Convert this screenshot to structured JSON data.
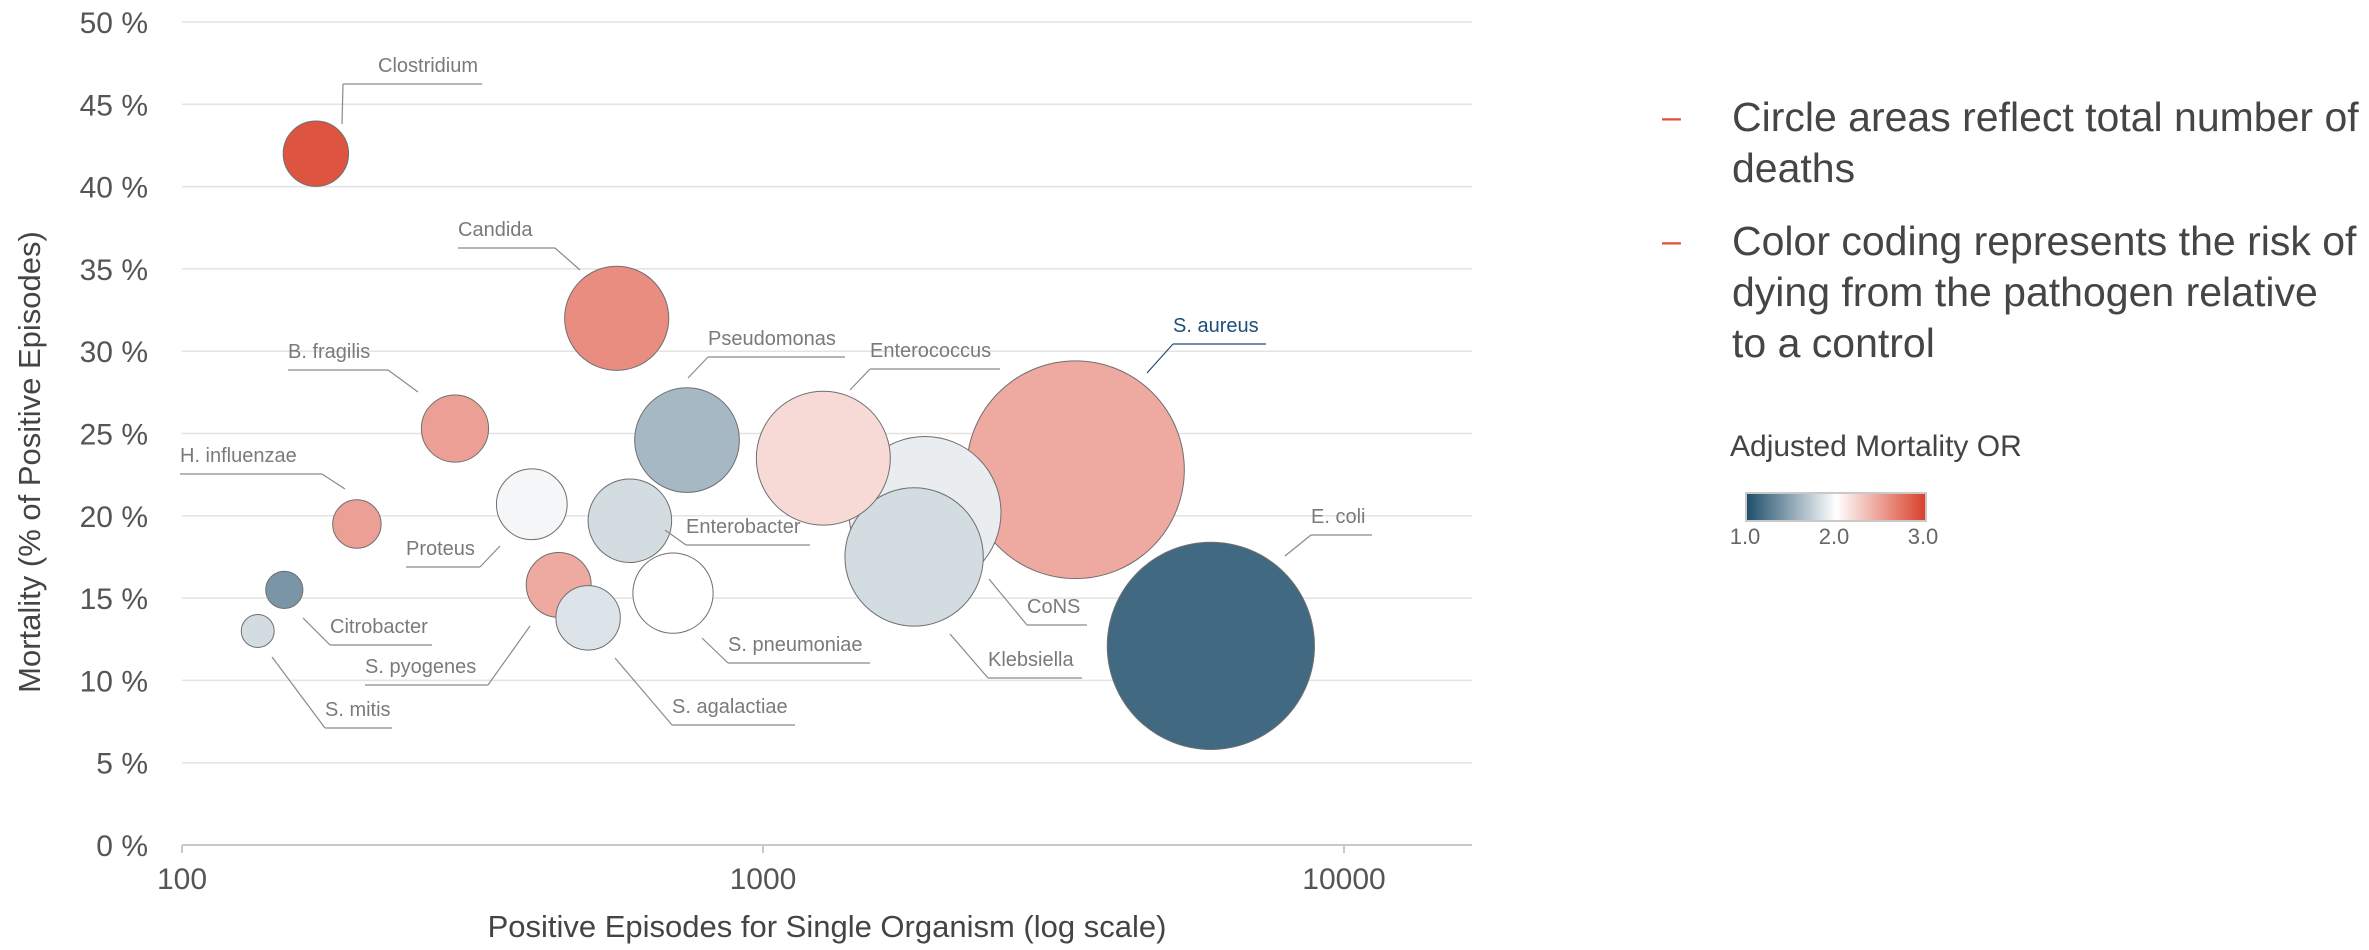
{
  "chart_data": {
    "type": "scatter",
    "subtype": "bubble",
    "xlabel": "Positive Episodes for Single Organism (log scale)",
    "ylabel": "Mortality (% of Positive Episodes)",
    "x_scale": "log",
    "xlim": [
      100,
      17000
    ],
    "ylim": [
      0,
      50
    ],
    "x_ticks": [
      {
        "value": 100,
        "label": "100"
      },
      {
        "value": 1000,
        "label": "1000"
      },
      {
        "value": 10000,
        "label": "10000"
      }
    ],
    "y_ticks": [
      {
        "value": 0,
        "label": "0 %"
      },
      {
        "value": 5,
        "label": "5 %"
      },
      {
        "value": 10,
        "label": "10 %"
      },
      {
        "value": 15,
        "label": "15 %"
      },
      {
        "value": 20,
        "label": "20 %"
      },
      {
        "value": 25,
        "label": "25 %"
      },
      {
        "value": 30,
        "label": "30 %"
      },
      {
        "value": 35,
        "label": "35 %"
      },
      {
        "value": 40,
        "label": "40 %"
      },
      {
        "value": 45,
        "label": "45 %"
      },
      {
        "value": 50,
        "label": "50 %"
      }
    ],
    "grid": "horizontal",
    "size_encoding": "Circle areas reflect total number of deaths",
    "color_scale": {
      "title": "Adjusted Mortality OR",
      "min": 1.0,
      "mid": 2.0,
      "max": 3.0,
      "colors": [
        "#1f4e6b",
        "#ffffff",
        "#d9412b"
      ],
      "tick_labels": [
        "1.0",
        "2.0",
        "3.0"
      ]
    },
    "points": [
      {
        "name": "Clostridium",
        "x": 170,
        "y": 42.0,
        "deaths": 71,
        "or": 2.9
      },
      {
        "name": "Candida",
        "x": 560,
        "y": 32.0,
        "deaths": 180,
        "or": 2.6
      },
      {
        "name": "B. fragilis",
        "x": 295,
        "y": 25.3,
        "deaths": 75,
        "or": 2.5
      },
      {
        "name": "H. influenzae",
        "x": 200,
        "y": 19.5,
        "deaths": 39,
        "or": 2.5
      },
      {
        "name": "Citrobacter",
        "x": 150,
        "y": 15.5,
        "deaths": 23,
        "or": 1.4
      },
      {
        "name": "S. mitis",
        "x": 135,
        "y": 13.0,
        "deaths": 18,
        "or": 1.8
      },
      {
        "name": "Proteus",
        "x": 400,
        "y": 20.7,
        "deaths": 83,
        "or": 1.95
      },
      {
        "name": "S. pyogenes",
        "x": 445,
        "y": 15.8,
        "deaths": 70,
        "or": 2.45
      },
      {
        "name": "S. agalactiae",
        "x": 500,
        "y": 13.8,
        "deaths": 69,
        "or": 1.85
      },
      {
        "name": "Enterobacter",
        "x": 590,
        "y": 19.7,
        "deaths": 116,
        "or": 1.8
      },
      {
        "name": "S. pneumoniae",
        "x": 700,
        "y": 15.3,
        "deaths": 107,
        "or": 2.0
      },
      {
        "name": "Pseudomonas",
        "x": 740,
        "y": 24.6,
        "deaths": 182,
        "or": 1.6
      },
      {
        "name": "Enterococcus",
        "x": 1270,
        "y": 23.5,
        "deaths": 298,
        "or": 2.2
      },
      {
        "name": "CoNS",
        "x": 1900,
        "y": 20.2,
        "deaths": 384,
        "or": 1.9
      },
      {
        "name": "Klebsiella",
        "x": 1820,
        "y": 17.5,
        "deaths": 318,
        "or": 1.8
      },
      {
        "name": "S. aureus",
        "x": 3450,
        "y": 22.8,
        "deaths": 787,
        "or": 2.45
      },
      {
        "name": "E. coli",
        "x": 5900,
        "y": 12.1,
        "deaths": 713,
        "or": 1.15
      }
    ]
  },
  "notes": [
    "Circle areas reflect total number of deaths",
    "Color coding represents the risk of dying from the pathogen relative to a control"
  ],
  "note_bullet": "–",
  "legend": {
    "title": "Adjusted Mortality OR",
    "ticks": [
      "1.0",
      "2.0",
      "3.0"
    ]
  }
}
